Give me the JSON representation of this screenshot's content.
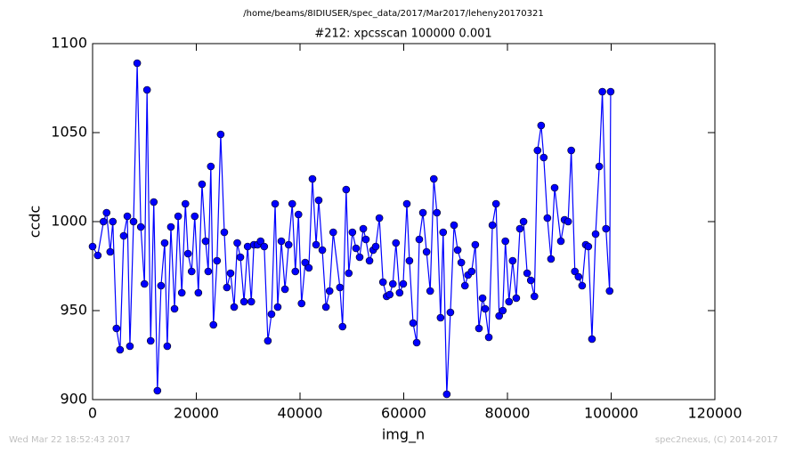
{
  "chart_data": {
    "type": "line",
    "suptitle": "/home/beams/8IDIUSER/spec_data/2017/Mar2017/leheny20170321",
    "title": "#212: xpcsscan 100000 0.001",
    "xlabel": "img_n",
    "ylabel": "ccdc",
    "timestamp": "Wed Mar 22 18:52:43 2017",
    "credit": "spec2nexus, (C) 2014-2017",
    "xlim": [
      0,
      120000
    ],
    "xticks": [
      0,
      20000,
      40000,
      60000,
      80000,
      100000,
      120000
    ],
    "ylim": [
      900,
      1100
    ],
    "yticks": [
      900,
      950,
      1000,
      1050,
      1100
    ],
    "grid": false,
    "x": [
      0,
      1000,
      2100,
      2700,
      3400,
      3900,
      4600,
      5300,
      6000,
      6700,
      7200,
      7900,
      8600,
      9300,
      10000,
      10500,
      11200,
      11800,
      12500,
      13200,
      13900,
      14400,
      15100,
      15800,
      16500,
      17200,
      17900,
      18400,
      19100,
      19700,
      20400,
      21100,
      21800,
      22300,
      22800,
      23300,
      24000,
      24700,
      25400,
      25900,
      26600,
      27300,
      27900,
      28500,
      29200,
      29900,
      30600,
      31100,
      31800,
      32400,
      33100,
      33800,
      34500,
      35200,
      35700,
      36400,
      37100,
      37800,
      38500,
      39100,
      39700,
      40300,
      41000,
      41700,
      42400,
      43100,
      43600,
      44300,
      45000,
      45700,
      46400,
      47700,
      48200,
      48900,
      49400,
      50100,
      50800,
      51500,
      52200,
      52700,
      53400,
      54100,
      54600,
      55300,
      56000,
      56700,
      57300,
      57900,
      58500,
      59200,
      59900,
      60600,
      61100,
      61800,
      62500,
      63000,
      63700,
      64400,
      65100,
      65800,
      66400,
      67100,
      67600,
      68300,
      69000,
      69700,
      70400,
      71100,
      71800,
      72400,
      73100,
      73800,
      74500,
      75200,
      75700,
      76400,
      77100,
      77800,
      78400,
      79100,
      79600,
      80300,
      81000,
      81700,
      82400,
      83100,
      83800,
      84500,
      85200,
      85800,
      86500,
      87000,
      87700,
      88400,
      89100,
      90300,
      91000,
      91700,
      92300,
      93000,
      93700,
      94400,
      95100,
      95600,
      96300,
      97000,
      97700,
      98300,
      99000,
      99700,
      99900
    ],
    "series": [
      {
        "name": "ccdc",
        "color": "#0000ff",
        "values": [
          986,
          981,
          1000,
          1005,
          983,
          1000,
          940,
          928,
          992,
          1003,
          930,
          1000,
          1089,
          997,
          965,
          1074,
          933,
          1011,
          905,
          964,
          988,
          930,
          997,
          951,
          1003,
          960,
          1010,
          982,
          972,
          1003,
          960,
          1021,
          989,
          972,
          1031,
          942,
          978,
          1049,
          994,
          963,
          971,
          952,
          988,
          980,
          955,
          986,
          955,
          987,
          987,
          989,
          986,
          933,
          948,
          1010,
          952,
          989,
          962,
          987,
          1010,
          972,
          1004,
          954,
          977,
          974,
          1024,
          987,
          1012,
          984,
          952,
          961,
          994,
          963,
          941,
          1018,
          971,
          994,
          985,
          980,
          996,
          990,
          978,
          984,
          986,
          1002,
          966,
          958,
          959,
          965,
          988,
          960,
          965,
          1010,
          978,
          943,
          932,
          990,
          1005,
          983,
          961,
          1024,
          1005,
          946,
          994,
          903,
          949,
          998,
          984,
          977,
          964,
          970,
          972,
          987,
          940,
          957,
          951,
          935,
          998,
          1010,
          947,
          950,
          989,
          955,
          978,
          957,
          996,
          1000,
          971,
          967,
          958,
          1040,
          1054,
          1036,
          1002,
          979,
          1019,
          989,
          1001,
          1000,
          1040,
          972,
          969,
          964,
          987,
          986,
          934,
          993,
          1031,
          1073,
          996,
          961,
          1073
        ]
      }
    ]
  }
}
